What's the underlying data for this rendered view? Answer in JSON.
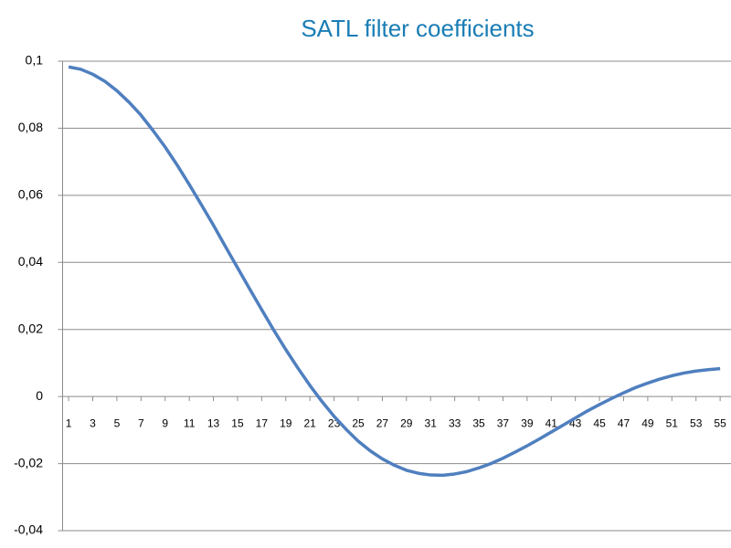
{
  "chart_data": {
    "type": "line",
    "title": "SATL filter coefficients",
    "x": [
      1,
      2,
      3,
      4,
      5,
      6,
      7,
      8,
      9,
      10,
      11,
      12,
      13,
      14,
      15,
      16,
      17,
      18,
      19,
      20,
      21,
      22,
      23,
      24,
      25,
      26,
      27,
      28,
      29,
      30,
      31,
      32,
      33,
      34,
      35,
      36,
      37,
      38,
      39,
      40,
      41,
      42,
      43,
      44,
      45,
      46,
      47,
      48,
      49,
      50,
      51,
      52,
      53,
      54,
      55
    ],
    "series": [
      {
        "color": "#4f7fbf",
        "values": [
          0.0983,
          0.0976,
          0.0961,
          0.094,
          0.0912,
          0.0878,
          0.0839,
          0.0793,
          0.0744,
          0.069,
          0.0632,
          0.0572,
          0.0511,
          0.0447,
          0.0384,
          0.0321,
          0.0259,
          0.0198,
          0.014,
          0.0085,
          0.0033,
          -0.0015,
          -0.0059,
          -0.0098,
          -0.0133,
          -0.0162,
          -0.0186,
          -0.0205,
          -0.022,
          -0.0229,
          -0.0234,
          -0.0235,
          -0.0231,
          -0.0224,
          -0.0213,
          -0.02,
          -0.0184,
          -0.0166,
          -0.0147,
          -0.0127,
          -0.0106,
          -0.0085,
          -0.0064,
          -0.0043,
          -0.0024,
          -0.0006,
          0.0011,
          0.0027,
          0.004,
          0.0052,
          0.0062,
          0.007,
          0.0076,
          0.008,
          0.0083
        ]
      }
    ],
    "xlim": [
      0.5,
      55.9
    ],
    "xticks": [
      1,
      3,
      5,
      7,
      9,
      11,
      13,
      15,
      17,
      19,
      21,
      23,
      25,
      27,
      29,
      31,
      33,
      35,
      37,
      39,
      41,
      43,
      45,
      47,
      49,
      51,
      53,
      55
    ],
    "ylim": [
      -0.04,
      0.1
    ],
    "yticks": [
      {
        "value": -0.04,
        "label": "-0,04"
      },
      {
        "value": -0.02,
        "label": "-0,02"
      },
      0,
      {
        "value": 0.02,
        "label": "0,02"
      },
      {
        "value": 0.04,
        "label": "0,04"
      },
      {
        "value": 0.06,
        "label": "0,06"
      },
      {
        "value": 0.08,
        "label": "0,08"
      },
      {
        "value": 0.1,
        "label": "0,1"
      }
    ],
    "grid": true
  }
}
